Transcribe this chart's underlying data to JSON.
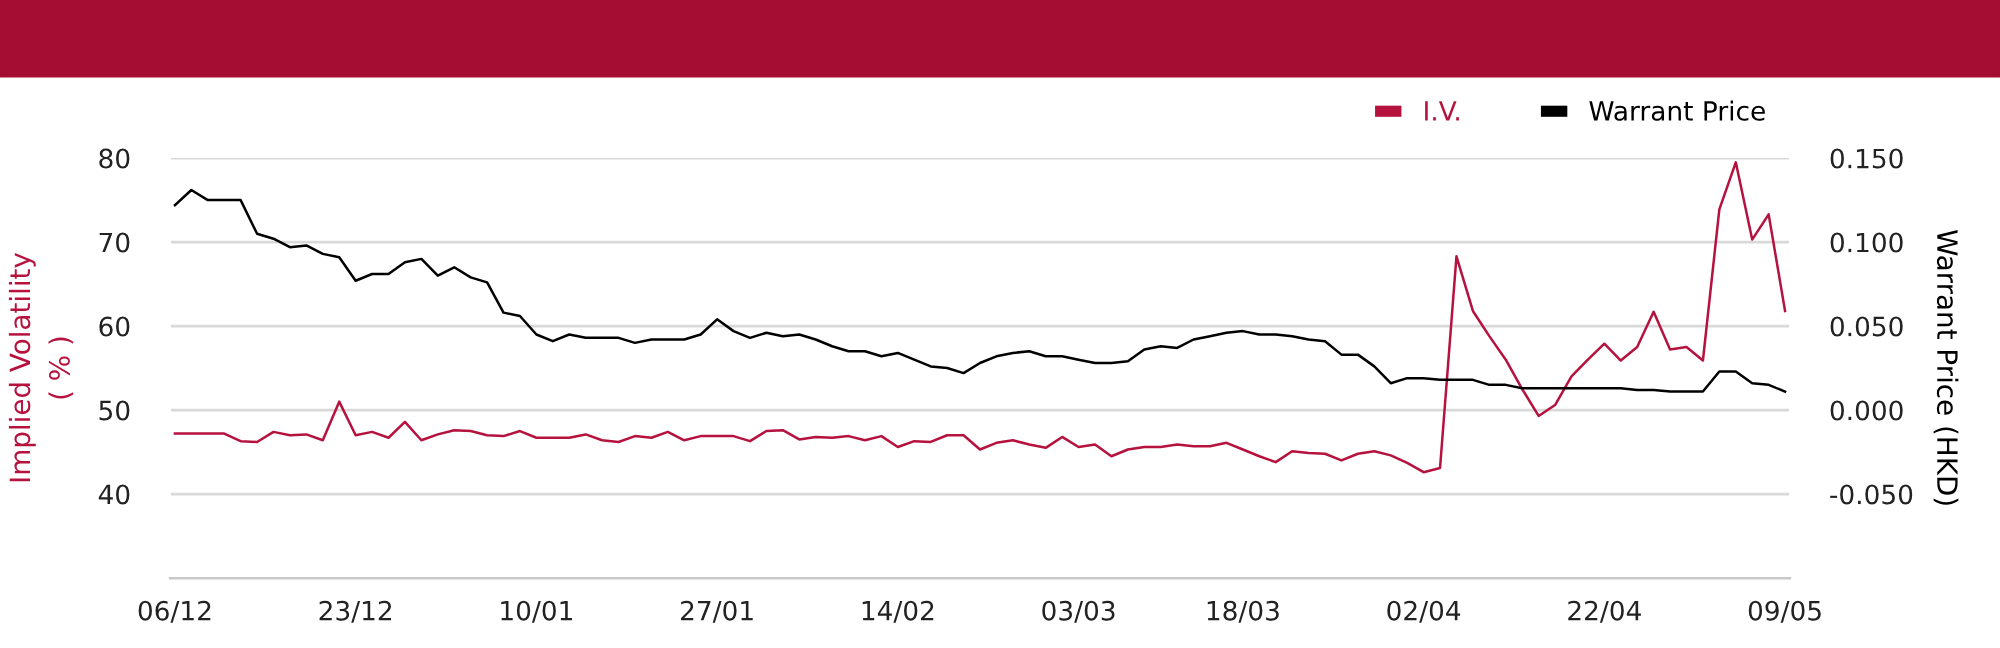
{
  "chart_data": {
    "type": "line",
    "categories": [
      "06/12",
      null,
      null,
      null,
      null,
      null,
      null,
      null,
      null,
      null,
      null,
      "23/12",
      null,
      null,
      null,
      null,
      null,
      null,
      null,
      null,
      null,
      null,
      "10/01",
      null,
      null,
      null,
      null,
      null,
      null,
      null,
      null,
      null,
      null,
      "27/01",
      null,
      null,
      null,
      null,
      null,
      null,
      null,
      null,
      null,
      null,
      "14/02",
      null,
      null,
      null,
      null,
      null,
      null,
      null,
      null,
      null,
      null,
      "03/03",
      null,
      null,
      null,
      null,
      null,
      null,
      null,
      null,
      null,
      "18/03",
      null,
      null,
      null,
      null,
      null,
      null,
      null,
      null,
      null,
      null,
      "02/04",
      null,
      null,
      null,
      null,
      null,
      null,
      null,
      null,
      null,
      null,
      "22/04",
      null,
      null,
      null,
      null,
      null,
      null,
      null,
      null,
      null,
      null,
      "09/05"
    ],
    "series": [
      {
        "name": "I.V.",
        "color": "#b5123e",
        "values": [
          47.2,
          47.2,
          47.2,
          47.2,
          46.3,
          46.2,
          47.4,
          47.0,
          47.1,
          46.4,
          51.0,
          47.0,
          47.4,
          46.7,
          48.6,
          46.4,
          47.1,
          47.6,
          47.5,
          47.0,
          46.9,
          47.5,
          46.7,
          46.7,
          46.7,
          47.1,
          46.4,
          46.2,
          46.9,
          46.7,
          47.4,
          46.4,
          46.9,
          46.9,
          46.9,
          46.3,
          47.5,
          47.6,
          46.5,
          46.8,
          46.7,
          46.9,
          46.4,
          46.9,
          45.6,
          46.3,
          46.2,
          47.0,
          47.0,
          45.3,
          46.1,
          46.4,
          45.9,
          45.5,
          46.8,
          45.6,
          45.9,
          44.5,
          45.3,
          45.6,
          45.6,
          45.9,
          45.7,
          45.7,
          46.1,
          45.3,
          44.5,
          43.8,
          45.1,
          44.9,
          44.8,
          44.0,
          44.8,
          45.1,
          44.6,
          43.7,
          42.6,
          43.1,
          68.3,
          61.8,
          58.8,
          56.0,
          52.5,
          49.3,
          50.6,
          54.0,
          56.0,
          57.9,
          55.9,
          57.5,
          61.7,
          57.2,
          57.5,
          55.9,
          73.9,
          79.5,
          70.3,
          73.3,
          61.8
        ]
      },
      {
        "name": "Warrant Price",
        "color": "#000000",
        "axis": "y2",
        "values": [
          0.122,
          0.131,
          0.125,
          0.125,
          0.125,
          0.105,
          0.102,
          0.097,
          0.098,
          0.093,
          0.091,
          0.077,
          0.081,
          0.081,
          0.088,
          0.09,
          0.08,
          0.085,
          0.079,
          0.076,
          0.058,
          0.056,
          0.045,
          0.041,
          0.045,
          0.043,
          0.043,
          0.043,
          0.04,
          0.042,
          0.042,
          0.042,
          0.045,
          0.054,
          0.047,
          0.043,
          0.046,
          0.044,
          0.045,
          0.042,
          0.038,
          0.035,
          0.035,
          0.032,
          0.034,
          0.03,
          0.026,
          0.025,
          0.022,
          0.028,
          0.032,
          0.034,
          0.035,
          0.032,
          0.032,
          0.03,
          0.028,
          0.028,
          0.029,
          0.036,
          0.038,
          0.037,
          0.042,
          0.044,
          0.046,
          0.047,
          0.045,
          0.045,
          0.044,
          0.042,
          0.041,
          0.033,
          0.033,
          0.026,
          0.016,
          0.019,
          0.019,
          0.018,
          0.018,
          0.018,
          0.015,
          0.015,
          0.013,
          0.013,
          0.013,
          0.013,
          0.013,
          0.013,
          0.013,
          0.012,
          0.012,
          0.011,
          0.011,
          0.011,
          0.023,
          0.023,
          0.016,
          0.015,
          0.011
        ]
      }
    ],
    "ylabel": "Implied Volatility\n( % )",
    "y2label": "Warrant Price (HKD)",
    "ylim": [
      30,
      80
    ],
    "yticks": [
      40,
      50,
      60,
      70,
      80
    ],
    "y2lim": [
      -0.1,
      0.15
    ],
    "y2ticks": [
      {
        "value": -0.05,
        "label": "-0.050"
      },
      {
        "value": 0,
        "label": "0.000"
      },
      {
        "value": 0.05,
        "label": "0.050"
      },
      {
        "value": 0.1,
        "label": "0.100"
      },
      {
        "value": 0.15,
        "label": "0.150"
      }
    ],
    "grid": "y",
    "legend": "top right",
    "marker": "none",
    "line_style": "solid"
  }
}
